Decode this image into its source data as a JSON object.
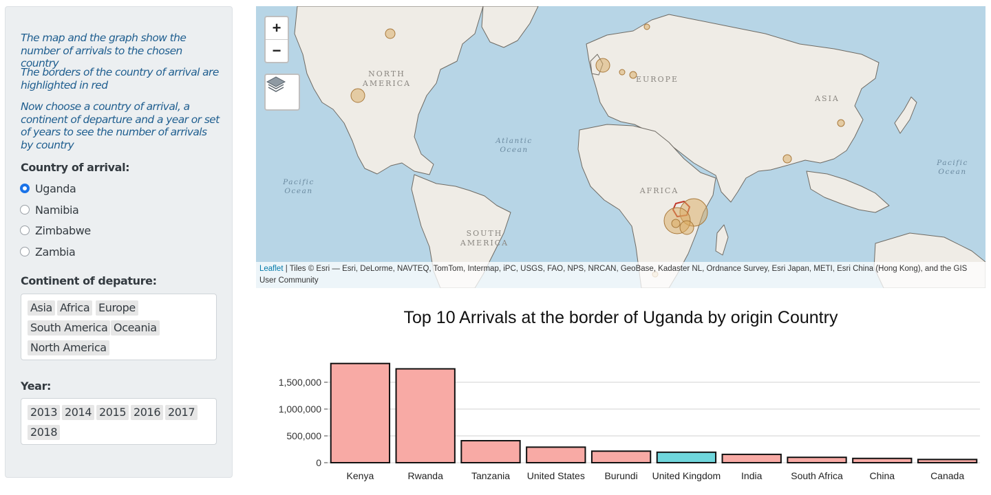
{
  "sidebar": {
    "intro": [
      "The map and the graph show the number of arrivals to the chosen country",
      "The borders of the country of arrival are highlighted in red",
      "Now choose a country of arrival, a continent of departure and a year or set of years to see the number of arrivals by country"
    ],
    "country_label": "Country of arrival:",
    "countries": [
      {
        "label": "Uganda",
        "checked": true
      },
      {
        "label": "Namibia",
        "checked": false
      },
      {
        "label": "Zimbabwe",
        "checked": false
      },
      {
        "label": "Zambia",
        "checked": false
      }
    ],
    "continent_label": "Continent of depature:",
    "continents": [
      "Asia",
      "Africa",
      "Europe",
      "South America",
      "Oceania",
      "North America"
    ],
    "year_label": "Year:",
    "years": [
      "2013",
      "2014",
      "2015",
      "2016",
      "2017",
      "2018"
    ]
  },
  "map": {
    "zoom_in": "+",
    "zoom_out": "−",
    "layers_icon": "layers-icon",
    "attribution_link": "Leaflet",
    "attribution_text": " | Tiles © Esri — Esri, DeLorme, NAVTEQ, TomTom, Intermap, iPC, USGS, FAO, NPS, NRCAN, GeoBase, Kadaster NL, Ordnance Survey, Esri Japan, METI, Esri China (Hong Kong), and the GIS User Community",
    "labels": {
      "north_america": "NORTH AMERICA",
      "south_america": "SOUTH AMERICA",
      "europe": "EUROPE",
      "asia": "ASIA",
      "africa": "AFRICA",
      "atlantic": "Atlantic Ocean",
      "pacific_west": "Pacific Ocean",
      "pacific_east": "Pacific Ocean"
    },
    "colors": {
      "ocean": "#b7d5e6",
      "land": "#efece6",
      "border": "#6e6a63",
      "bubble": "#d9a95f"
    }
  },
  "chart_title": "Top 10 Arrivals at the border of Uganda by origin Country",
  "chart_data": {
    "type": "bar",
    "categories": [
      "Kenya",
      "Rwanda",
      "Tanzania",
      "United States",
      "Burundi",
      "United Kingdom",
      "India",
      "South Africa",
      "China",
      "Canada"
    ],
    "values": [
      1850000,
      1750000,
      410000,
      290000,
      215000,
      195000,
      155000,
      100000,
      80000,
      60000
    ],
    "colors": [
      "#f8aaa5",
      "#f8aaa5",
      "#f8aaa5",
      "#f8aaa5",
      "#f8aaa5",
      "#6fd6dc",
      "#f8aaa5",
      "#f8aaa5",
      "#f8aaa5",
      "#f8aaa5"
    ],
    "ticks": [
      0,
      500000,
      1000000,
      1500000
    ],
    "tick_labels": [
      "0",
      "500,000",
      "1,000,000",
      "1,500,000"
    ],
    "ylim": [
      0,
      1900000
    ],
    "grid": true
  }
}
